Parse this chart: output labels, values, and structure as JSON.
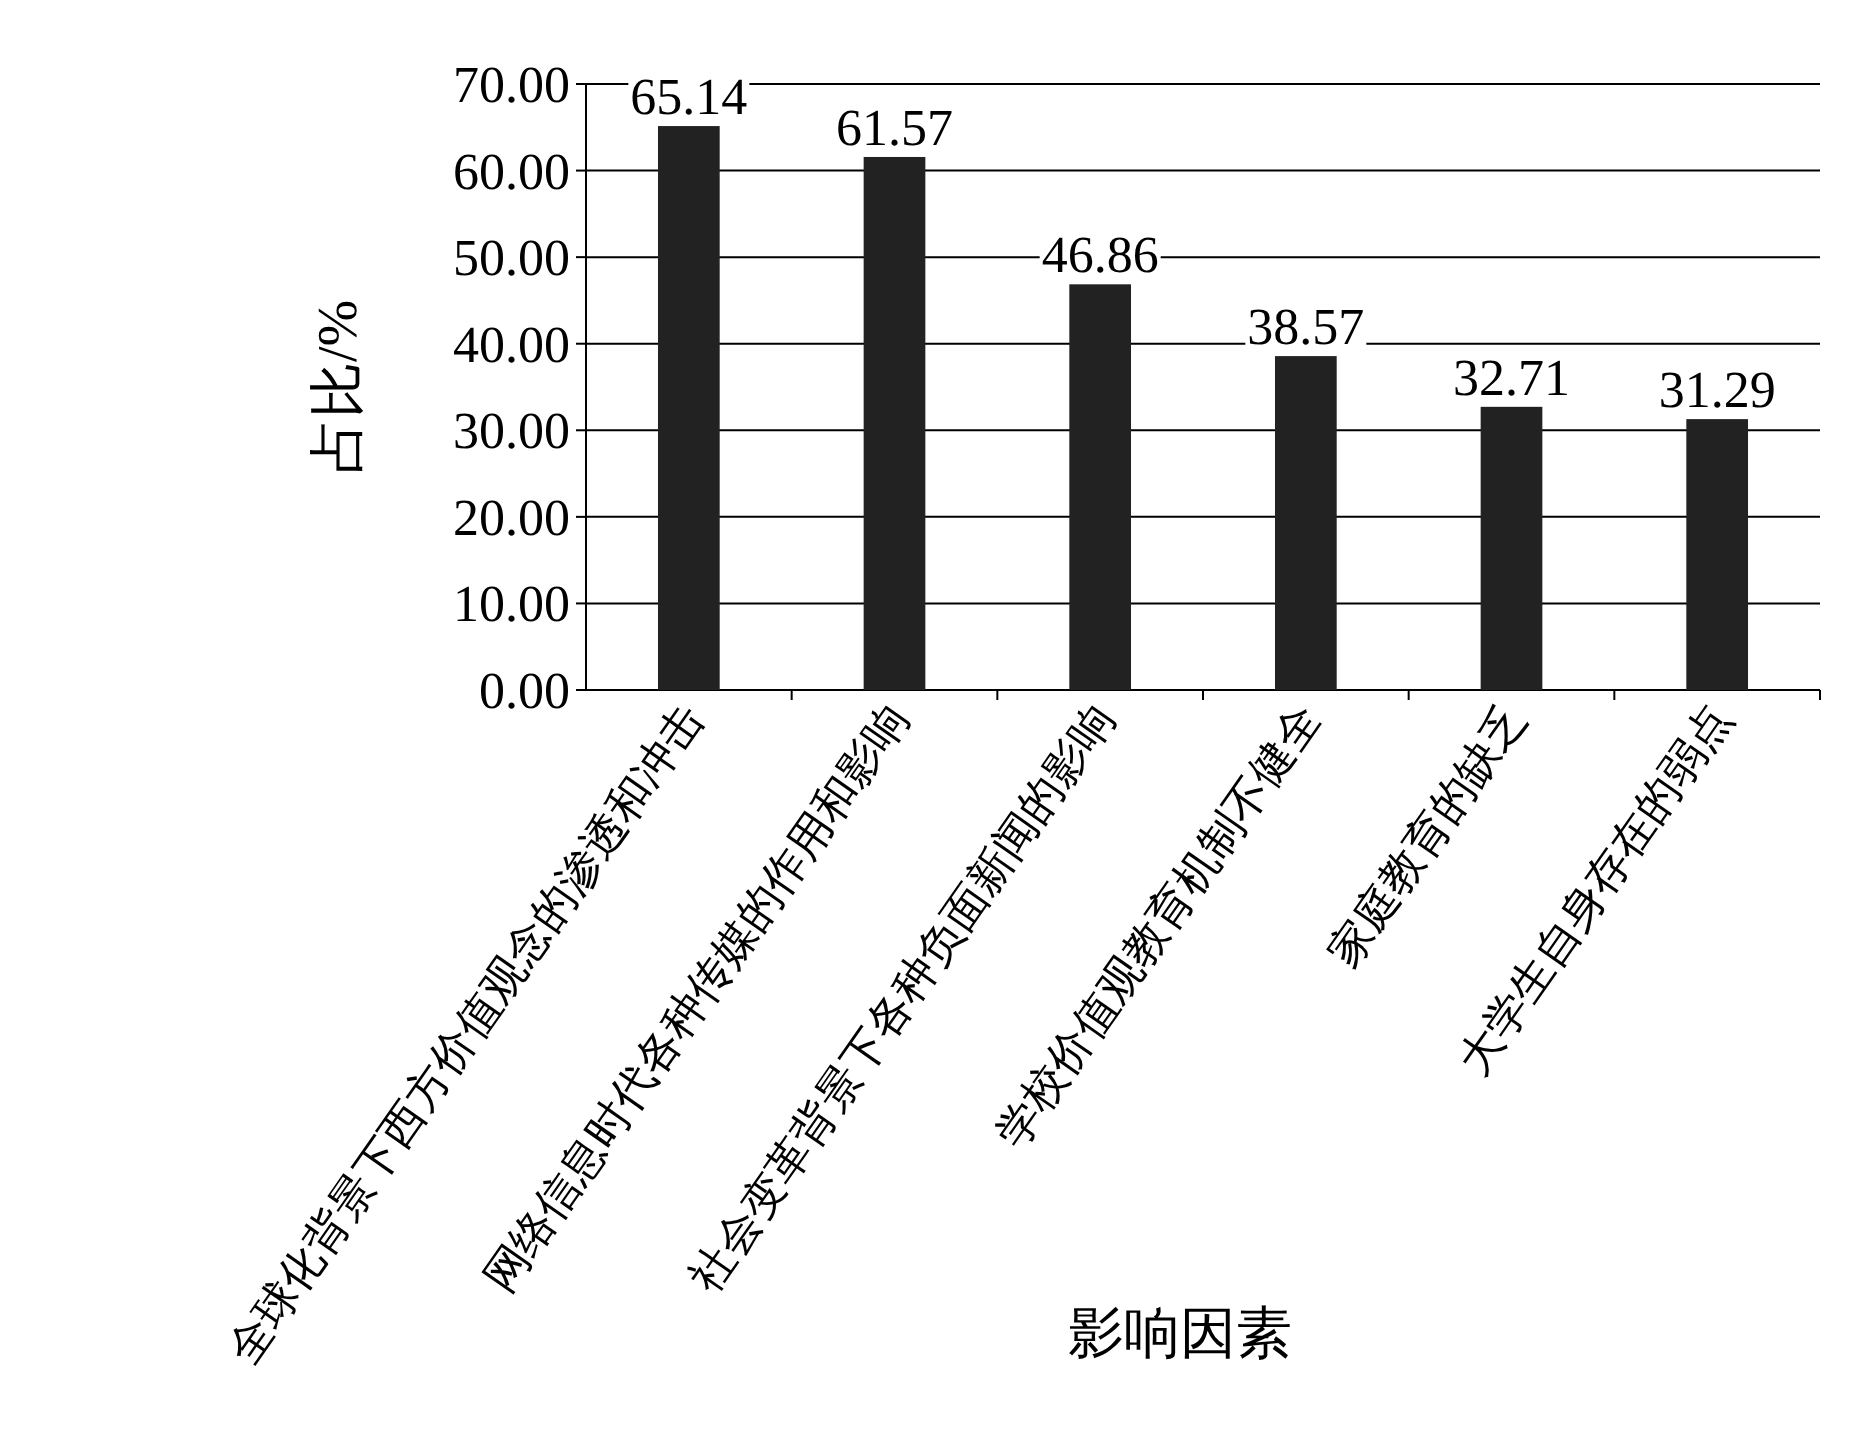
{
  "chart_data": {
    "type": "bar",
    "xlabel": "影响因素",
    "ylabel": "占比/%",
    "categories": [
      "全球化背景下西方价值观念的渗透和冲击",
      "网络信息时代各种传媒的作用和影响",
      "社会变革背景下各种负面新闻的影响",
      "学校价值观教育机制不健全",
      "家庭教育的缺乏",
      "大学生自身存在的弱点"
    ],
    "values": [
      65.14,
      61.57,
      46.86,
      38.57,
      32.71,
      31.29
    ],
    "color": "#222222",
    "data_labels": true,
    "grid": "y",
    "ylim": [
      0,
      70
    ],
    "yticks": [
      {
        "value": 0,
        "label": "0.00"
      },
      {
        "value": 10,
        "label": "10.00"
      },
      {
        "value": 20,
        "label": "20.00"
      },
      {
        "value": 30,
        "label": "30.00"
      },
      {
        "value": 40,
        "label": "40.00"
      },
      {
        "value": 50,
        "label": "50.00"
      },
      {
        "value": 60,
        "label": "60.00"
      },
      {
        "value": 70,
        "label": "70.00"
      }
    ]
  }
}
